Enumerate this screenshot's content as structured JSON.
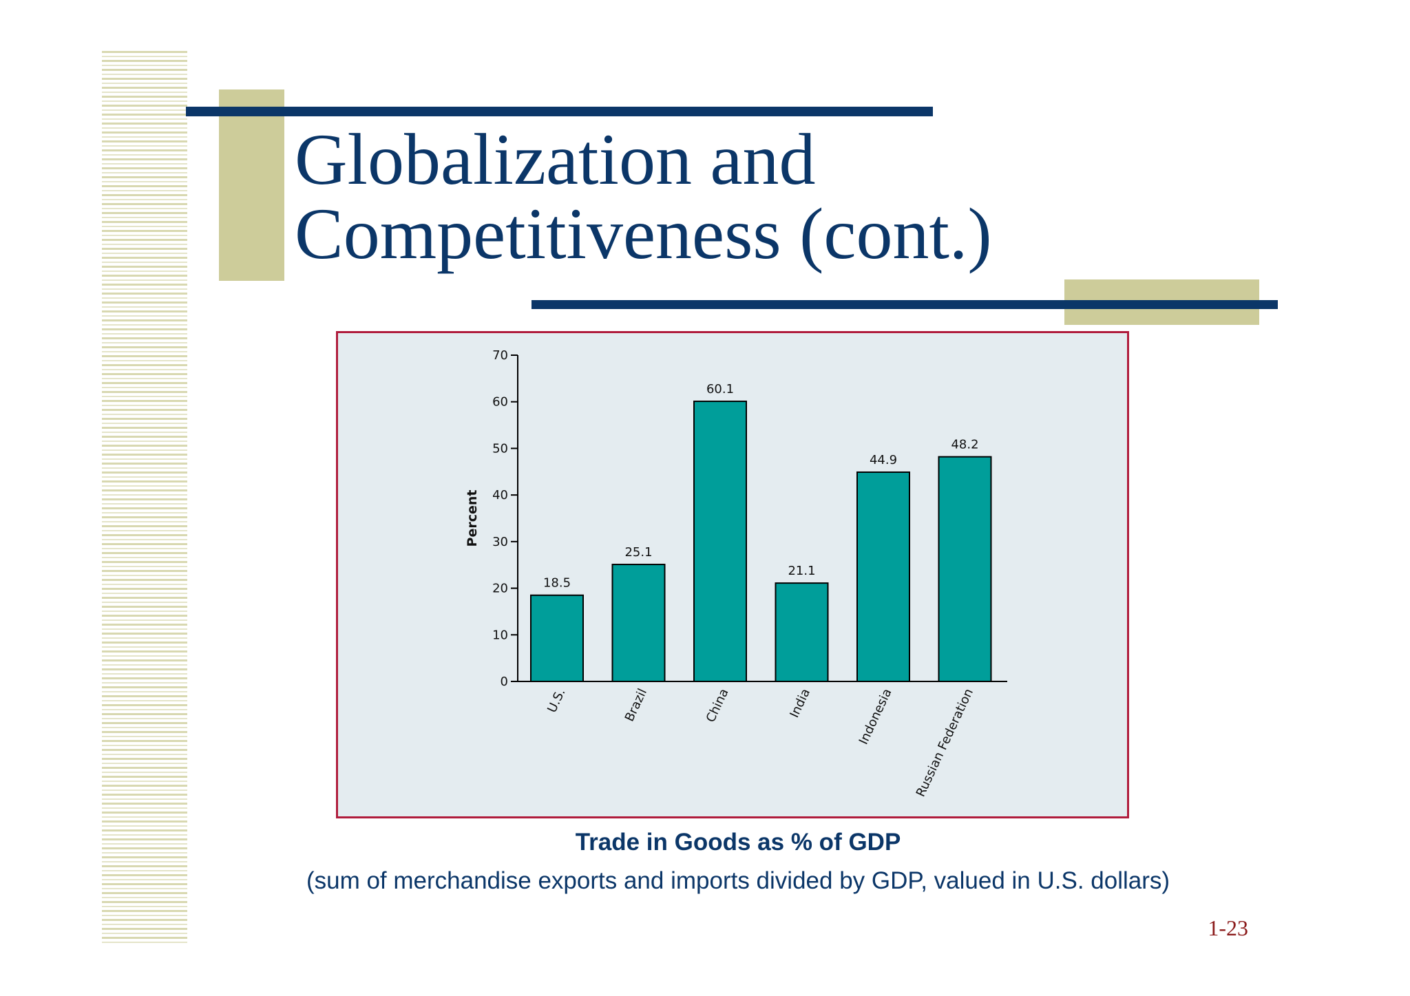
{
  "slide": {
    "title": "Globalization and\nCompetitiveness (cont.)",
    "caption_main": "Trade in Goods as % of GDP",
    "caption_sub": "(sum of merchandise exports and imports divided by GDP, valued in U.S. dollars)",
    "page_number": "1-23",
    "colors": {
      "title": "#0b3668",
      "accent_bar": "#0b3668",
      "accent_block": "#cdcc9a",
      "chart_border": "#b01c3c",
      "chart_bg": "#e4ecf0",
      "bar_fill": "#009e9a",
      "page_number": "#8b1a1a"
    }
  },
  "chart_data": {
    "type": "bar",
    "categories": [
      "U.S.",
      "Brazil",
      "China",
      "India",
      "Indonesia",
      "Russian Federation"
    ],
    "values": [
      18.5,
      25.1,
      60.1,
      21.1,
      44.9,
      48.2
    ],
    "data_labels": [
      "18.5",
      "25.1",
      "60.1",
      "21.1",
      "44.9",
      "48.2"
    ],
    "ylabel": "Percent",
    "ylim": [
      0,
      70
    ],
    "yticks": [
      0,
      10,
      20,
      30,
      40,
      50,
      60,
      70
    ],
    "grid": false,
    "legend": "none"
  }
}
